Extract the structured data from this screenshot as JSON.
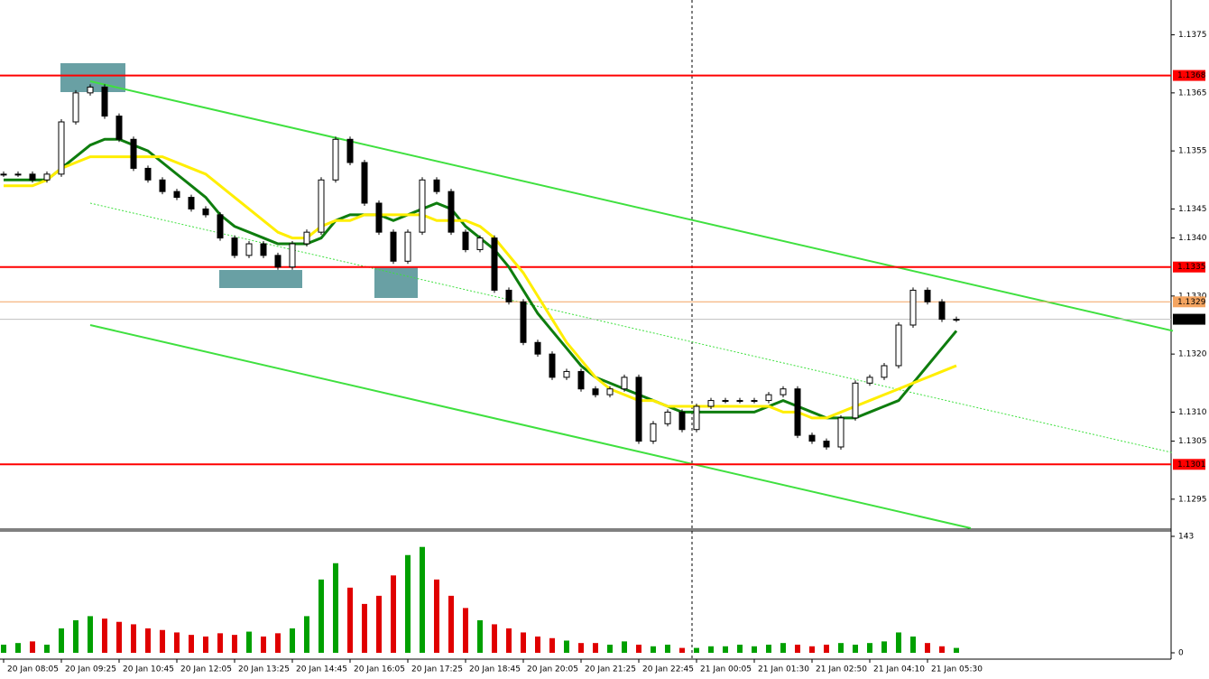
{
  "chart_data": [
    {
      "type": "candlestick",
      "categories": [
        "20 Jan 08:05",
        null,
        null,
        null,
        "20 Jan 09:25",
        null,
        null,
        null,
        "20 Jan 10:45",
        null,
        null,
        null,
        "20 Jan 12:05",
        null,
        null,
        null,
        "20 Jan 13:25",
        null,
        null,
        null,
        "20 Jan 14:45",
        null,
        null,
        null,
        "20 Jan 16:05",
        null,
        null,
        null,
        "20 Jan 17:25",
        null,
        null,
        null,
        "20 Jan 18:45",
        null,
        null,
        null,
        "20 Jan 20:05",
        null,
        null,
        null,
        "20 Jan 21:25",
        null,
        null,
        null,
        "20 Jan 22:45",
        null,
        null,
        null,
        "21 Jan 00:05",
        null,
        null,
        null,
        "21 Jan 01:30",
        null,
        null,
        null,
        "21 Jan 02:50",
        null,
        null,
        null,
        "21 Jan 04:10",
        null,
        null,
        null,
        "21 Jan 05:30",
        null,
        null
      ],
      "values": [
        1.1351,
        1.1351,
        1.135,
        1.1351,
        1.136,
        1.1365,
        1.1366,
        1.1361,
        1.1357,
        1.1352,
        1.135,
        1.1348,
        1.1347,
        1.1345,
        1.1344,
        1.134,
        1.1337,
        1.1339,
        1.1337,
        1.1335,
        1.1339,
        1.1341,
        1.135,
        1.1357,
        1.1353,
        1.1346,
        1.1341,
        1.1336,
        1.1341,
        1.135,
        1.1348,
        1.1341,
        1.1338,
        1.134,
        1.1331,
        1.1329,
        1.1322,
        1.132,
        1.1316,
        1.1317,
        1.1314,
        1.1313,
        1.1314,
        1.1316,
        1.1305,
        1.1308,
        1.131,
        1.1307,
        1.1311,
        1.1312,
        1.1312,
        1.1312,
        1.1312,
        1.1313,
        1.1314,
        1.1306,
        1.1305,
        1.1304,
        1.1309,
        1.1315,
        1.1316,
        1.1318,
        1.1325,
        1.1331,
        1.1329,
        1.1326,
        1.1326
      ],
      "color": "#000000",
      "ma_lines": [
        {
          "color": "#0e7d0e",
          "values": [
            1.135,
            1.135,
            1.135,
            1.135,
            1.1352,
            1.1354,
            1.1356,
            1.1357,
            1.1357,
            1.1356,
            1.1355,
            1.1353,
            1.1351,
            1.1349,
            1.1347,
            1.1344,
            1.1342,
            1.1341,
            1.134,
            1.1339,
            1.1339,
            1.1339,
            1.134,
            1.1343,
            1.1344,
            1.1344,
            1.1344,
            1.1343,
            1.1344,
            1.1345,
            1.1346,
            1.1345,
            1.1342,
            1.134,
            1.1338,
            1.1335,
            1.1331,
            1.1327,
            1.1324,
            1.1321,
            1.1318,
            1.1316,
            1.1315,
            1.1314,
            1.1313,
            1.1312,
            1.1311,
            1.131,
            1.131,
            1.131,
            1.131,
            1.131,
            1.131,
            1.1311,
            1.1312,
            1.1311,
            1.131,
            1.1309,
            1.1309,
            1.1309,
            1.131,
            1.1311,
            1.1312,
            1.1315,
            1.1318,
            1.1321,
            1.1324
          ]
        },
        {
          "color": "#ffee00",
          "values": [
            1.1349,
            1.1349,
            1.1349,
            1.135,
            1.1352,
            1.1353,
            1.1354,
            1.1354,
            1.1354,
            1.1354,
            1.1354,
            1.1354,
            1.1353,
            1.1352,
            1.1351,
            1.1349,
            1.1347,
            1.1345,
            1.1343,
            1.1341,
            1.134,
            1.134,
            1.1342,
            1.1343,
            1.1343,
            1.1344,
            1.1344,
            1.1344,
            1.1344,
            1.1344,
            1.1343,
            1.1343,
            1.1343,
            1.1342,
            1.134,
            1.1337,
            1.1334,
            1.133,
            1.1326,
            1.1322,
            1.1319,
            1.1316,
            1.1314,
            1.1313,
            1.1312,
            1.1312,
            1.1311,
            1.1311,
            1.1311,
            1.1311,
            1.1311,
            1.1311,
            1.1311,
            1.1311,
            1.131,
            1.131,
            1.1309,
            1.1309,
            1.131,
            1.1311,
            1.1312,
            1.1313,
            1.1314,
            1.1315,
            1.1316,
            1.1317,
            1.1318
          ]
        }
      ],
      "trendlines": [
        {
          "color": "#3fe03f",
          "x": [
            6,
            81
          ],
          "y": [
            1.1367,
            1.1324
          ]
        },
        {
          "color": "#3fe03f",
          "x": [
            6,
            67
          ],
          "y": [
            1.1325,
            1.129
          ]
        }
      ],
      "dashed_trendline": {
        "color": "#3fe03f",
        "x": [
          6,
          81
        ],
        "y": [
          1.1346,
          1.1303
        ]
      },
      "levels": [
        {
          "value": 1.1368,
          "color": "#ff0000"
        },
        {
          "value": 1.1335,
          "color": "#ff0000"
        },
        {
          "value": 1.1301,
          "color": "#ff0000"
        }
      ],
      "marker_level": {
        "value": 1.1329,
        "color": "#f4a460"
      },
      "current_price": {
        "value": 1.1326,
        "color": "#000000"
      },
      "ylim": [
        1.129,
        1.1381
      ],
      "yticks": [
        1.1375,
        1.1365,
        1.1355,
        1.1345,
        {
          "value": 1.134,
          "label": "1.1340"
        },
        {
          "value": 1.133,
          "label": "1.1330"
        },
        {
          "value": 1.132,
          "label": "1.1320"
        },
        {
          "value": 1.131,
          "label": "1.1310"
        },
        1.1305,
        1.1295
      ]
    },
    {
      "type": "bar",
      "values": [
        10,
        12,
        14,
        10,
        30,
        40,
        45,
        42,
        38,
        35,
        30,
        28,
        25,
        22,
        20,
        24,
        22,
        26,
        20,
        24,
        30,
        45,
        90,
        110,
        80,
        60,
        70,
        95,
        120,
        130,
        90,
        70,
        55,
        40,
        35,
        30,
        25,
        20,
        18,
        15,
        12,
        12,
        10,
        14,
        10,
        8,
        10,
        6,
        6,
        8,
        8,
        10,
        8,
        10,
        12,
        10,
        8,
        10,
        12,
        10,
        12,
        14,
        25,
        20,
        12,
        8,
        6
      ],
      "up_color": "#00a000",
      "down_color": "#e00000",
      "ylim": [
        0,
        143
      ],
      "yticks": [
        0,
        143
      ]
    }
  ]
}
